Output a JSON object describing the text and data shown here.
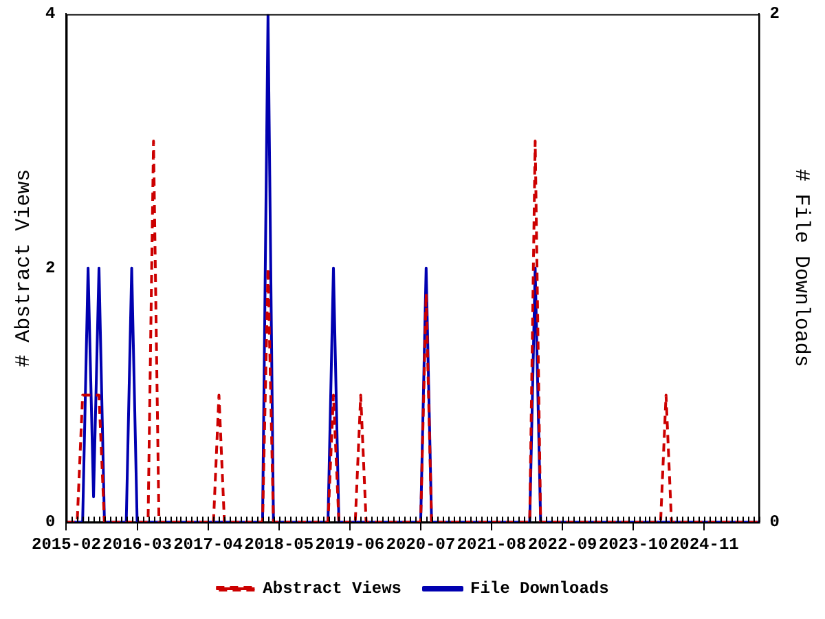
{
  "chart_data": {
    "type": "line",
    "ylabel": "# Abstract Views",
    "y2label": "# File Downloads",
    "xlim": [
      "2015-02",
      "2025-09"
    ],
    "xticks": [
      "2015-02",
      "2016-03",
      "2017-04",
      "2018-05",
      "2019-06",
      "2020-07",
      "2021-08",
      "2022-09",
      "2023-10",
      "2024-11"
    ],
    "ylim": [
      0,
      4
    ],
    "yticks": [
      0,
      2,
      4
    ],
    "y2lim": [
      0,
      2
    ],
    "y2ticks": [
      0,
      2
    ],
    "grid": false,
    "legend": "bottom",
    "marker": "none",
    "series": [
      {
        "name": "Abstract Views",
        "color": "#cc0000",
        "line_style": "dashed",
        "x": [
          "2015-02",
          "2015-04",
          "2015-05",
          "2015-08",
          "2015-09",
          "2016-05",
          "2016-06",
          "2016-07",
          "2017-05",
          "2017-06",
          "2017-07",
          "2018-02",
          "2018-03",
          "2018-04",
          "2019-02",
          "2019-03",
          "2019-04",
          "2019-07",
          "2019-08",
          "2019-09",
          "2020-07",
          "2020-08",
          "2020-09",
          "2022-03",
          "2022-04",
          "2022-05",
          "2024-03",
          "2024-04",
          "2024-05",
          "2025-09"
        ],
        "values": [
          0,
          0,
          1,
          1,
          0,
          0,
          3,
          0,
          0,
          1,
          0,
          0,
          2,
          0,
          0,
          1,
          0,
          0,
          1,
          0,
          0,
          1.8,
          0,
          0,
          3,
          0,
          0,
          1,
          0,
          0
        ]
      },
      {
        "name": "File Downloads",
        "color": "#0000b0",
        "line_style": "solid",
        "axis": "y2",
        "x": [
          "2015-02",
          "2015-05",
          "2015-06",
          "2015-07",
          "2015-08",
          "2015-09",
          "2016-01",
          "2016-02",
          "2016-03",
          "2018-02",
          "2018-03",
          "2018-04",
          "2019-02",
          "2019-03",
          "2019-04",
          "2020-07",
          "2020-08",
          "2020-09",
          "2022-03",
          "2022-04",
          "2022-05",
          "2025-09"
        ],
        "values": [
          0,
          0,
          1,
          0.1,
          1,
          0,
          0,
          1,
          0,
          0,
          2,
          0,
          0,
          1,
          0,
          0,
          1,
          0,
          0,
          1,
          0,
          0
        ]
      }
    ]
  }
}
